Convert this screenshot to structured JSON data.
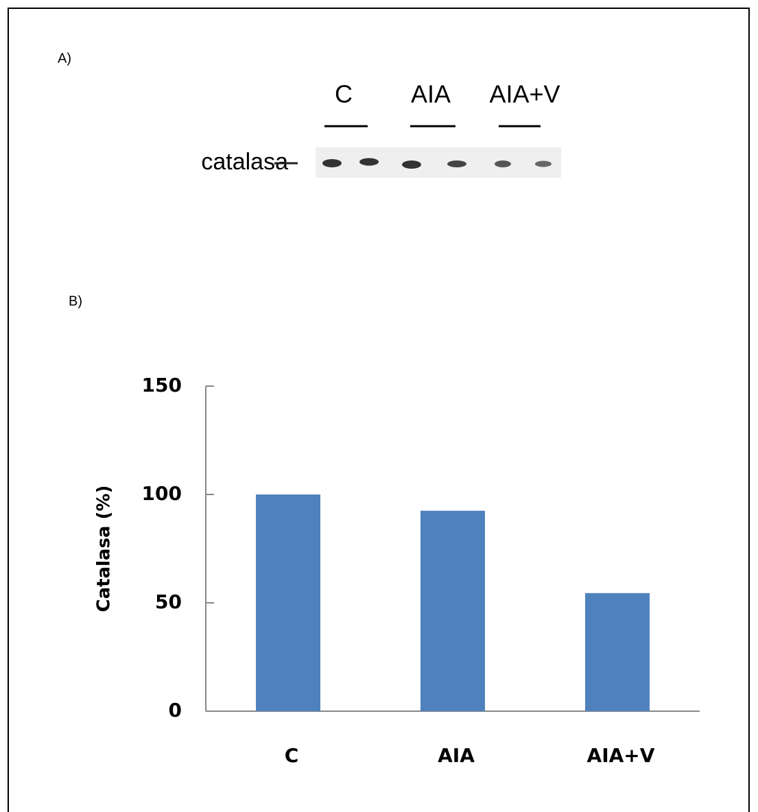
{
  "panel_a": {
    "label": "A)",
    "protein": "catalasa",
    "groups": [
      "C",
      "AIA",
      "AIA+V"
    ]
  },
  "chart_data": {
    "type": "bar",
    "panel_label": "B)",
    "y_label": "Catalasa (%)",
    "categories": [
      "C",
      "AIA",
      "AIA+V"
    ],
    "values": [
      100,
      92.5,
      54.5
    ],
    "color": "#4f81bd",
    "ylim": [
      0,
      150
    ],
    "yticks": [
      0,
      50,
      100,
      150
    ],
    "grid": false
  }
}
